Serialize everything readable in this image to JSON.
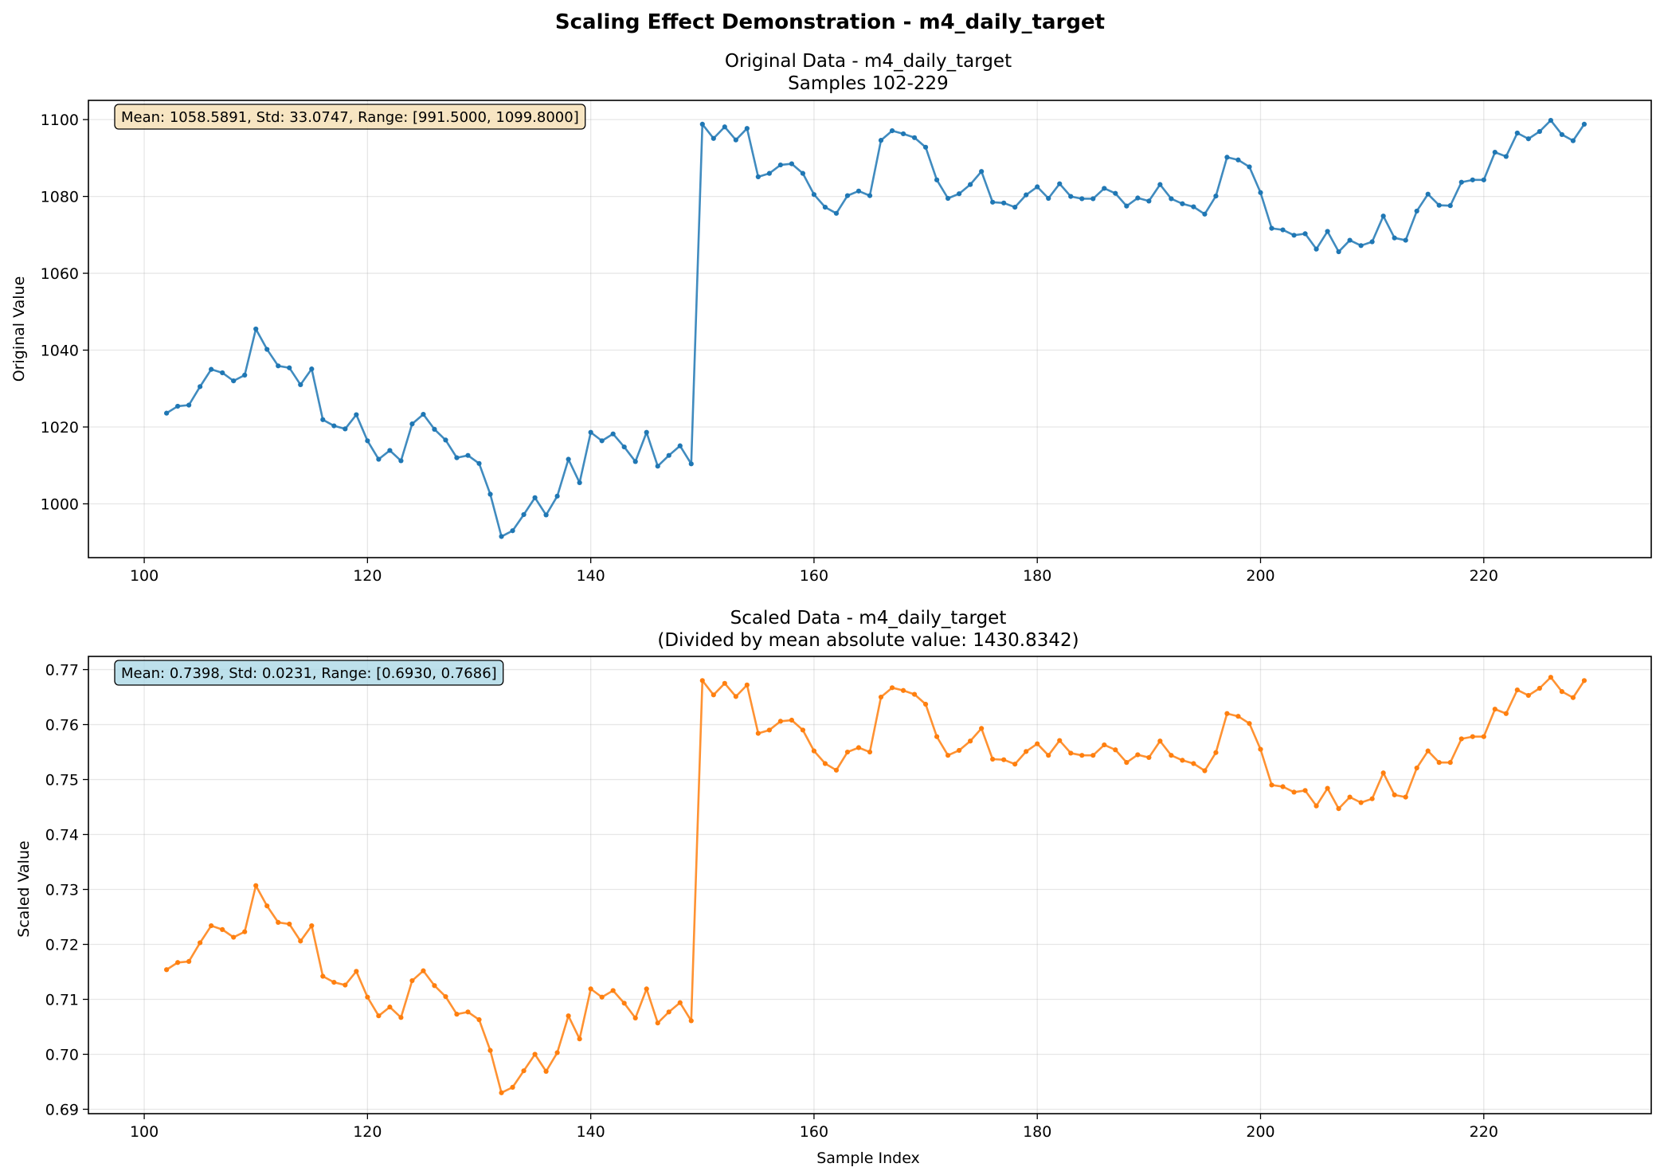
{
  "figure": {
    "title": "Scaling Effect Demonstration - m4_daily_target"
  },
  "chart_data": [
    {
      "type": "line",
      "title": "Original Data - m4_daily_target",
      "subtitle": "Samples 102-229",
      "xlabel": "",
      "ylabel": "Original Value",
      "xlim": [
        95,
        235
      ],
      "ylim": [
        986,
        1105
      ],
      "xticks": [
        100,
        120,
        140,
        160,
        180,
        200,
        220
      ],
      "yticks": [
        1000,
        1020,
        1040,
        1060,
        1080,
        1100
      ],
      "grid": true,
      "color": "#1f77b4",
      "stats_box": {
        "text": "Mean: 1058.5891, Std: 33.0747, Range: [991.5000, 1099.8000]",
        "fill": "#f5deb3"
      },
      "x_start": 102,
      "values": [
        1023.6,
        1025.4,
        1025.7,
        1030.5,
        1035.0,
        1034.1,
        1032.0,
        1033.5,
        1045.5,
        1040.2,
        1035.9,
        1035.4,
        1031.0,
        1035.1,
        1021.9,
        1020.3,
        1019.5,
        1023.2,
        1016.4,
        1011.6,
        1013.9,
        1011.2,
        1020.8,
        1023.3,
        1019.4,
        1016.6,
        1012.0,
        1012.6,
        1010.5,
        1002.5,
        991.5,
        993.0,
        997.2,
        1001.6,
        997.1,
        1002.0,
        1011.6,
        1005.5,
        1018.6,
        1016.4,
        1018.2,
        1014.8,
        1011.0,
        1018.6,
        1009.8,
        1012.6,
        1015.1,
        1010.4,
        1098.8,
        1095.1,
        1098.1,
        1094.7,
        1097.7,
        1085.1,
        1086.0,
        1088.2,
        1088.5,
        1086.0,
        1080.5,
        1077.2,
        1075.6,
        1080.2,
        1081.4,
        1080.2,
        1094.6,
        1097.1,
        1096.3,
        1095.3,
        1092.8,
        1084.3,
        1079.5,
        1080.7,
        1083.1,
        1086.5,
        1078.5,
        1078.3,
        1077.2,
        1080.4,
        1082.5,
        1079.5,
        1083.3,
        1080.0,
        1079.4,
        1079.4,
        1082.1,
        1080.8,
        1077.5,
        1079.6,
        1078.8,
        1083.1,
        1079.4,
        1078.1,
        1077.3,
        1075.4,
        1080.1,
        1090.2,
        1089.5,
        1087.7,
        1081.0,
        1071.7,
        1071.3,
        1069.9,
        1070.3,
        1066.3,
        1070.9,
        1065.6,
        1068.6,
        1067.2,
        1068.2,
        1074.9,
        1069.2,
        1068.6,
        1076.2,
        1080.6,
        1077.7,
        1077.6,
        1083.7,
        1084.3,
        1084.3,
        1091.5,
        1090.4,
        1096.5,
        1095.0,
        1096.9,
        1099.8,
        1096.1,
        1094.5,
        1098.8
      ]
    },
    {
      "type": "line",
      "title": "Scaled Data - m4_daily_target",
      "subtitle": "(Divided by mean absolute value: 1430.8342)",
      "xlabel": "Sample Index",
      "ylabel": "Scaled Value",
      "xlim": [
        95,
        235
      ],
      "ylim": [
        0.6892,
        0.7724
      ],
      "xticks": [
        100,
        120,
        140,
        160,
        180,
        200,
        220
      ],
      "yticks": [
        "0.69",
        "0.70",
        "0.71",
        "0.72",
        "0.73",
        "0.74",
        "0.75",
        "0.76",
        "0.77"
      ],
      "grid": true,
      "color": "#ff7f0e",
      "stats_box": {
        "text": "Mean: 0.7398, Std: 0.0231, Range: [0.6930, 0.7686]",
        "fill": "#add8e6"
      },
      "x_start": 102,
      "values": [
        0.7154,
        0.7167,
        0.7169,
        0.7203,
        0.7234,
        0.7227,
        0.7213,
        0.7223,
        0.7307,
        0.727,
        0.724,
        0.7237,
        0.7206,
        0.7234,
        0.7142,
        0.7131,
        0.7126,
        0.7151,
        0.7104,
        0.707,
        0.7086,
        0.7067,
        0.7134,
        0.7152,
        0.7125,
        0.7105,
        0.7073,
        0.7077,
        0.7063,
        0.7007,
        0.693,
        0.694,
        0.697,
        0.7,
        0.6969,
        0.7003,
        0.707,
        0.7028,
        0.7119,
        0.7104,
        0.7116,
        0.7093,
        0.7066,
        0.7119,
        0.7057,
        0.7077,
        0.7094,
        0.7061,
        0.768,
        0.7654,
        0.7675,
        0.7651,
        0.7672,
        0.7584,
        0.759,
        0.7606,
        0.7608,
        0.759,
        0.7552,
        0.7529,
        0.7517,
        0.755,
        0.7558,
        0.755,
        0.765,
        0.7667,
        0.7662,
        0.7655,
        0.7637,
        0.7578,
        0.7544,
        0.7553,
        0.757,
        0.7593,
        0.7537,
        0.7536,
        0.7528,
        0.7551,
        0.7565,
        0.7544,
        0.7571,
        0.7548,
        0.7544,
        0.7544,
        0.7563,
        0.7554,
        0.7531,
        0.7545,
        0.754,
        0.757,
        0.7544,
        0.7535,
        0.7529,
        0.7516,
        0.7549,
        0.762,
        0.7615,
        0.7602,
        0.7555,
        0.749,
        0.7487,
        0.7477,
        0.748,
        0.7452,
        0.7484,
        0.7447,
        0.7468,
        0.7458,
        0.7465,
        0.7512,
        0.7472,
        0.7468,
        0.7521,
        0.7552,
        0.7531,
        0.7531,
        0.7574,
        0.7578,
        0.7578,
        0.7628,
        0.762,
        0.7663,
        0.7653,
        0.7666,
        0.7686,
        0.766,
        0.7649,
        0.768
      ]
    }
  ]
}
